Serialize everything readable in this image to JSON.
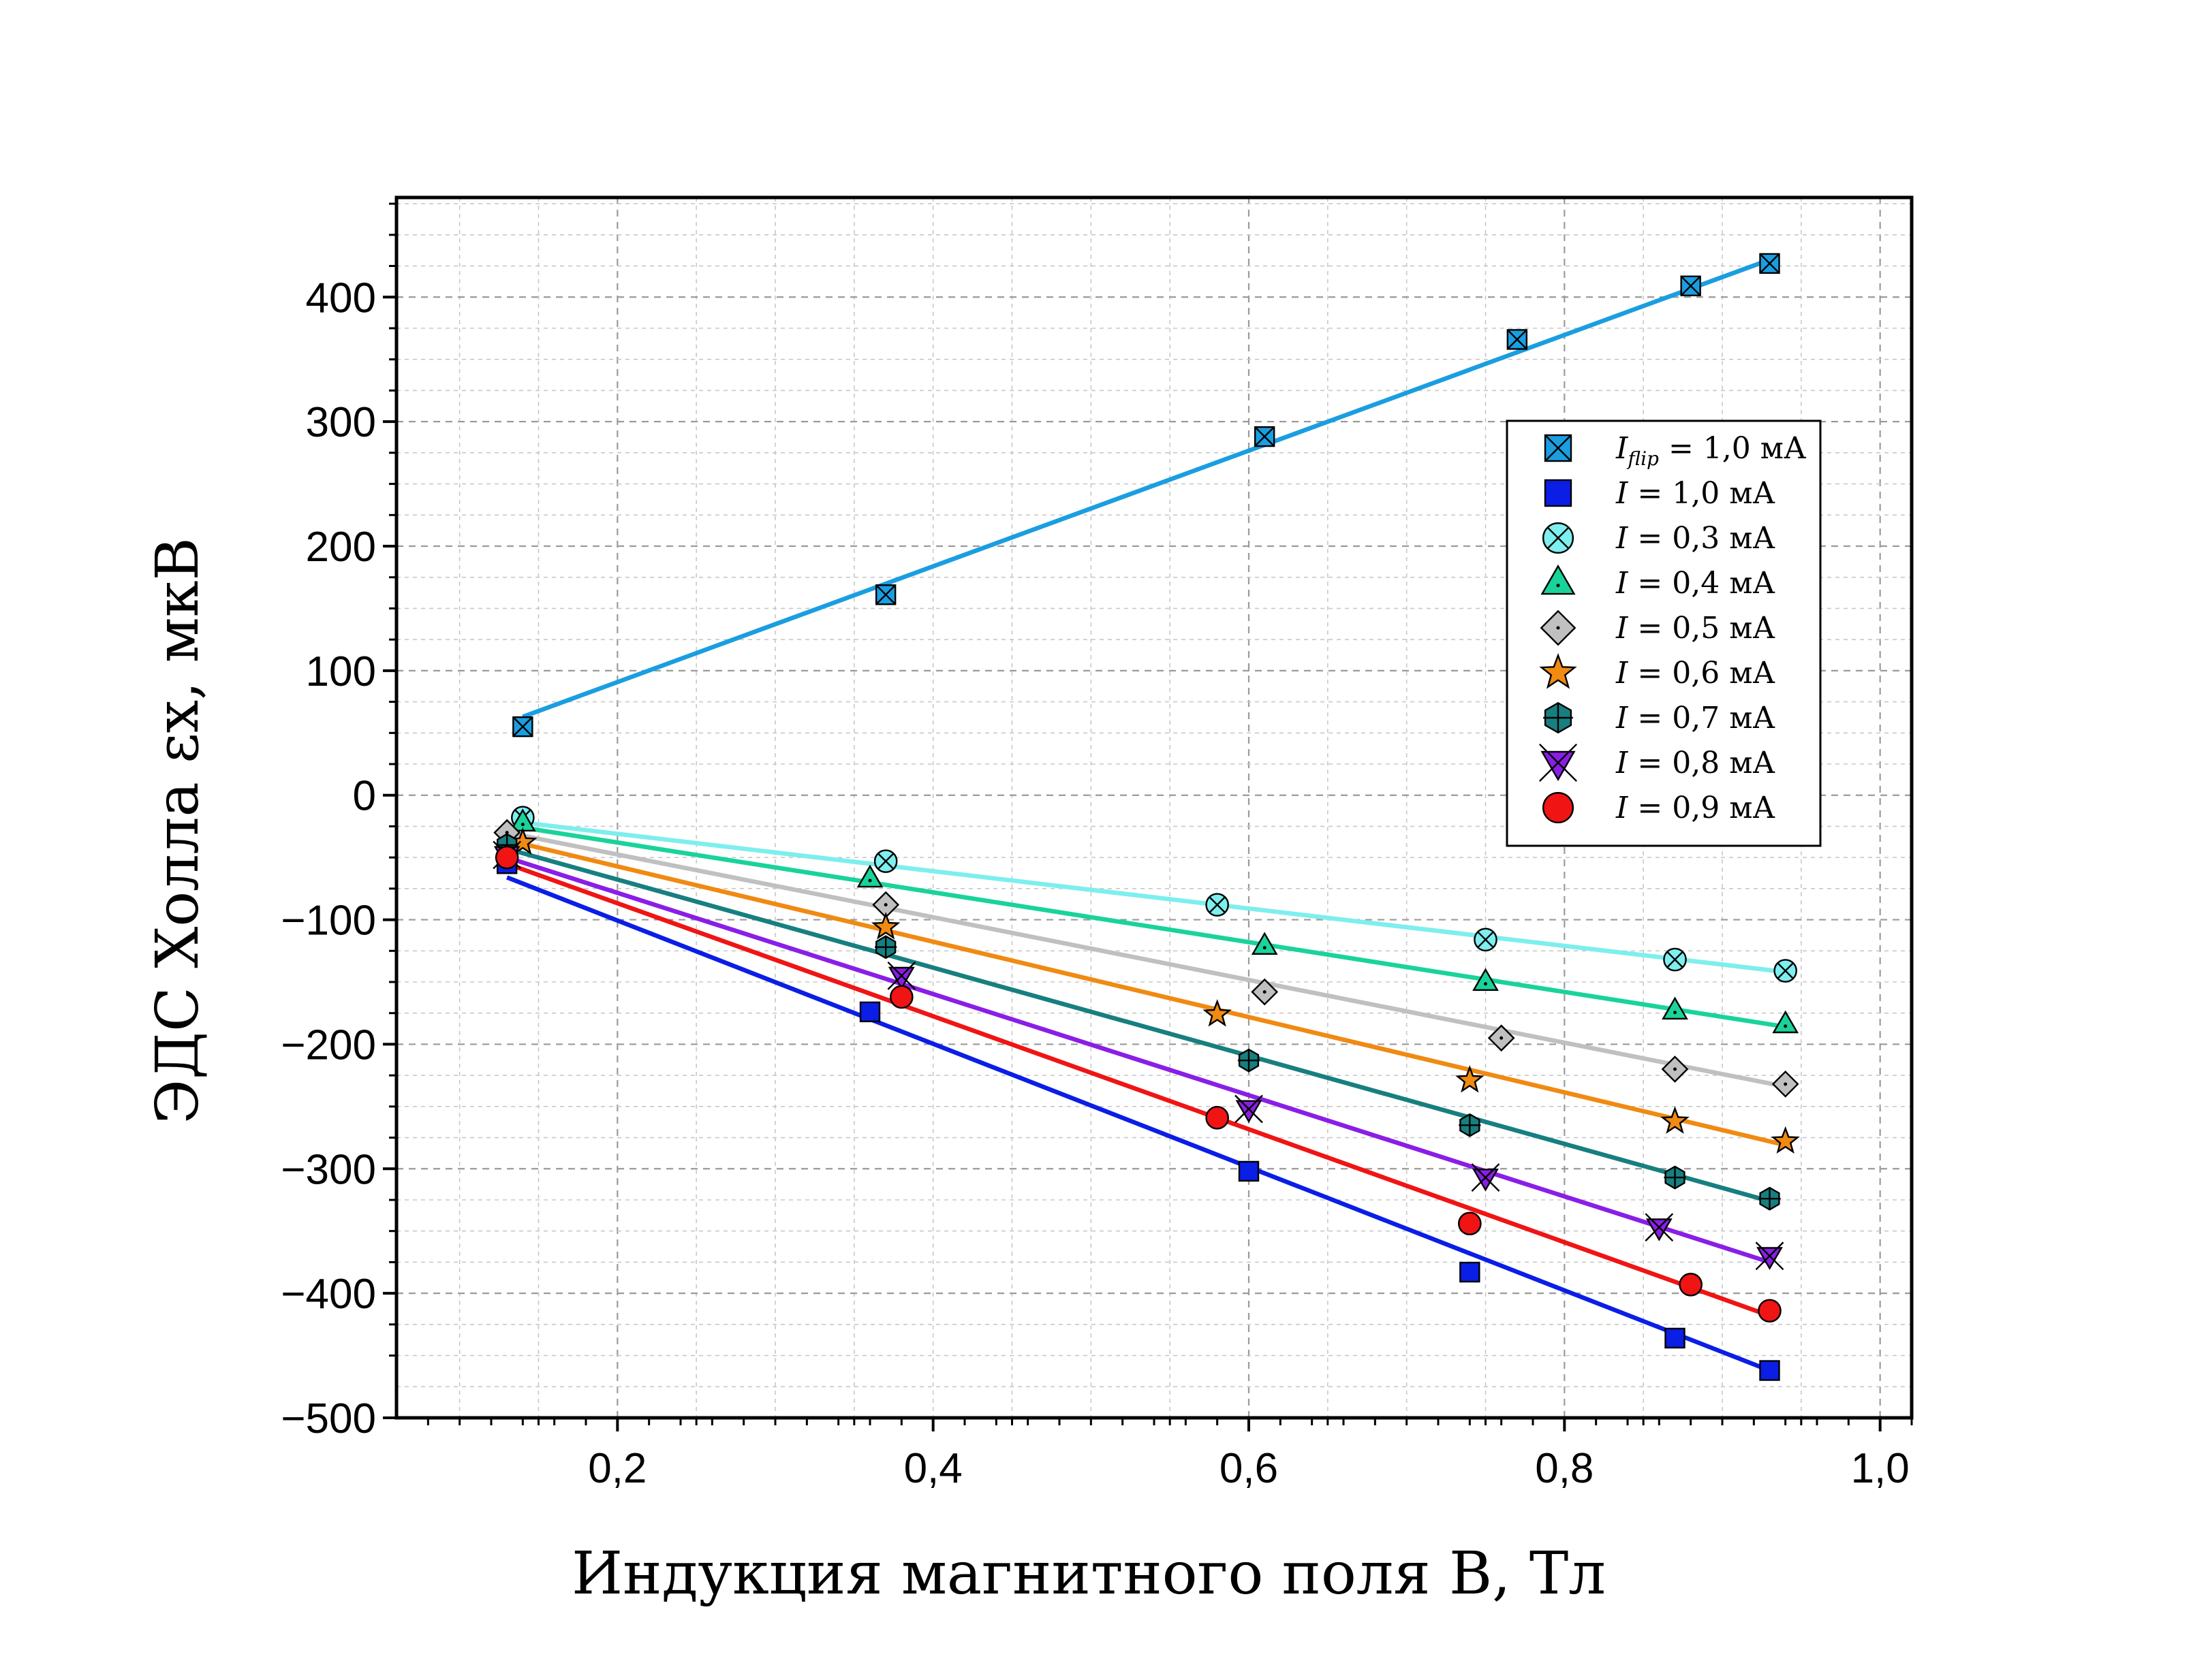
{
  "chart_data": {
    "type": "scatter",
    "xlabel": "Индукция магнитного поля B, Тл",
    "ylabel": "ЭДС Холла εx, мкВ",
    "xlim": [
      0.06,
      1.02
    ],
    "ylim": [
      -500,
      480
    ],
    "x_major_ticks": [
      0.2,
      0.4,
      0.6,
      0.8,
      1.0
    ],
    "x_tick_labels": [
      "0,2",
      "0,4",
      "0,6",
      "0,8",
      "1,0"
    ],
    "y_major_ticks": [
      -500,
      -400,
      -300,
      -200,
      -100,
      0,
      100,
      200,
      300,
      400
    ],
    "y_tick_labels": [
      "−500",
      "−400",
      "−300",
      "−200",
      "−100",
      "0",
      "100",
      "200",
      "300",
      "400"
    ],
    "grid": true,
    "legend_position": "right",
    "series": [
      {
        "name": "I_flip = 1,0 мА",
        "legend_main": "I",
        "legend_sub": "flip",
        "legend_rest": " = 1,0 мА",
        "marker": "square-x",
        "color": "#1a9ee0",
        "x": [
          0.14,
          0.37,
          0.61,
          0.77,
          0.88,
          0.93
        ],
        "y": [
          55,
          161,
          288,
          366,
          409,
          427
        ],
        "fit": [
          [
            0.14,
            63
          ],
          [
            0.93,
            430
          ]
        ]
      },
      {
        "name": "I = 1,0 мА",
        "legend_main": "I",
        "legend_sub": "",
        "legend_rest": " = 1,0 мА",
        "marker": "square",
        "color": "#0a1ee6",
        "x": [
          0.13,
          0.36,
          0.6,
          0.74,
          0.87,
          0.93
        ],
        "y": [
          -55,
          -174,
          -302,
          -383,
          -436,
          -462
        ],
        "fit": [
          [
            0.13,
            -66
          ],
          [
            0.93,
            -462
          ]
        ]
      },
      {
        "name": "I = 0,3 мА",
        "legend_main": "I",
        "legend_sub": "",
        "legend_rest": " = 0,3 мА",
        "marker": "circle-x",
        "color": "#7eeeee",
        "x": [
          0.14,
          0.37,
          0.58,
          0.75,
          0.87,
          0.94
        ],
        "y": [
          -18,
          -53,
          -88,
          -116,
          -132,
          -141
        ],
        "fit": [
          [
            0.14,
            -22
          ],
          [
            0.94,
            -142
          ]
        ]
      },
      {
        "name": "I = 0,4 мА",
        "legend_main": "I",
        "legend_sub": "",
        "legend_rest": " = 0,4 мА",
        "marker": "triangle",
        "color": "#19d39a",
        "x": [
          0.14,
          0.36,
          0.61,
          0.75,
          0.87,
          0.94
        ],
        "y": [
          -22,
          -67,
          -121,
          -150,
          -173,
          -184
        ],
        "fit": [
          [
            0.14,
            -26
          ],
          [
            0.94,
            -186
          ]
        ]
      },
      {
        "name": "I = 0,5 мА",
        "legend_main": "I",
        "legend_sub": "",
        "legend_rest": " = 0,5 мА",
        "marker": "diamond",
        "color": "#c0c0c0",
        "x": [
          0.13,
          0.37,
          0.61,
          0.76,
          0.87,
          0.94
        ],
        "y": [
          -30,
          -88,
          -158,
          -195,
          -220,
          -232
        ],
        "fit": [
          [
            0.13,
            -30
          ],
          [
            0.94,
            -234
          ]
        ]
      },
      {
        "name": "I = 0,6 мА",
        "legend_main": "I",
        "legend_sub": "",
        "legend_rest": " = 0,6 мА",
        "marker": "star",
        "color": "#f08a12",
        "x": [
          0.14,
          0.37,
          0.58,
          0.74,
          0.87,
          0.94
        ],
        "y": [
          -38,
          -106,
          -176,
          -229,
          -262,
          -278
        ],
        "fit": [
          [
            0.13,
            -36
          ],
          [
            0.94,
            -281
          ]
        ]
      },
      {
        "name": "I = 0,7 мА",
        "legend_main": "I",
        "legend_sub": "",
        "legend_rest": " = 0,7 мА",
        "marker": "hexagon-plus",
        "color": "#177f7f",
        "x": [
          0.13,
          0.37,
          0.6,
          0.74,
          0.87,
          0.93
        ],
        "y": [
          -40,
          -122,
          -213,
          -265,
          -307,
          -324
        ],
        "fit": [
          [
            0.13,
            -43
          ],
          [
            0.93,
            -326
          ]
        ]
      },
      {
        "name": "I = 0,8 мА",
        "legend_main": "I",
        "legend_sub": "",
        "legend_rest": " = 0,8 мА",
        "marker": "triangle-down-x",
        "color": "#8a1ee6",
        "x": [
          0.13,
          0.38,
          0.6,
          0.75,
          0.86,
          0.93
        ],
        "y": [
          -48,
          -145,
          -252,
          -307,
          -347,
          -370
        ],
        "fit": [
          [
            0.13,
            -50
          ],
          [
            0.93,
            -375
          ]
        ]
      },
      {
        "name": "I = 0,9 мА",
        "legend_main": "I",
        "legend_sub": "",
        "legend_rest": " = 0,9 мА",
        "marker": "circle",
        "color": "#f01414",
        "x": [
          0.13,
          0.38,
          0.58,
          0.74,
          0.88,
          0.93
        ],
        "y": [
          -50,
          -162,
          -259,
          -344,
          -393,
          -414
        ],
        "fit": [
          [
            0.13,
            -55
          ],
          [
            0.93,
            -418
          ]
        ]
      }
    ]
  }
}
